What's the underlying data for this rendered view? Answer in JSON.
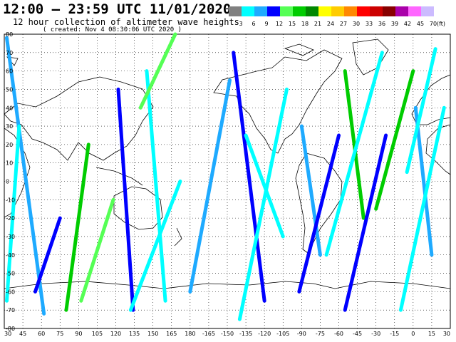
{
  "header": {
    "title": "12:00 – 23:59 UTC 11/01/2020",
    "subtitle": "12 hour collection of altimeter wave heights",
    "created": "( created: Nov  4 08:30:06 UTC 2020 )"
  },
  "legend": {
    "unit": "(ft)",
    "bins": [
      {
        "label": "3",
        "color": "#808080"
      },
      {
        "label": "6",
        "color": "#00ffff"
      },
      {
        "label": "9",
        "color": "#1eaaff"
      },
      {
        "label": "12",
        "color": "#0000ff"
      },
      {
        "label": "15",
        "color": "#55ff55"
      },
      {
        "label": "18",
        "color": "#00cc00"
      },
      {
        "label": "21",
        "color": "#008800"
      },
      {
        "label": "24",
        "color": "#ffff00"
      },
      {
        "label": "27",
        "color": "#ffcc00"
      },
      {
        "label": "30",
        "color": "#ff8800"
      },
      {
        "label": "33",
        "color": "#ff0000"
      },
      {
        "label": "36",
        "color": "#cc0000"
      },
      {
        "label": "39",
        "color": "#880000"
      },
      {
        "label": "42",
        "color": "#aa00aa"
      },
      {
        "label": "45",
        "color": "#ff66ff"
      },
      {
        "label": "70",
        "color": "#ccbbff"
      }
    ]
  },
  "map": {
    "lon_labels": [
      "30",
      "45",
      "60",
      "75",
      "90",
      "105",
      "120",
      "135",
      "150",
      "165",
      "180",
      "-165",
      "-150",
      "-135",
      "-120",
      "-105",
      "-90",
      "-75",
      "-60",
      "-45",
      "-30",
      "-15",
      "0",
      "15",
      "30"
    ],
    "lat_labels": [
      "80",
      "70",
      "60",
      "50",
      "40",
      "30",
      "20",
      "10",
      "0",
      "-10",
      "-20",
      "-30",
      "-40",
      "-50",
      "-60",
      "-70",
      "-80"
    ],
    "lon_range": [
      30,
      390
    ],
    "lat_range": [
      -80,
      80
    ],
    "tracks": [
      {
        "from": [
          32,
          78
        ],
        "to": [
          62,
          -72
        ],
        "color": "#1eaaff"
      },
      {
        "from": [
          42,
          30
        ],
        "to": [
          32,
          -65
        ],
        "color": "#00ffff"
      },
      {
        "from": [
          75,
          -20
        ],
        "to": [
          55,
          -60
        ],
        "color": "#0000ff"
      },
      {
        "from": [
          98,
          20
        ],
        "to": [
          80,
          -70
        ],
        "color": "#00cc00"
      },
      {
        "from": [
          118,
          -10
        ],
        "to": [
          92,
          -65
        ],
        "color": "#55ff55"
      },
      {
        "from": [
          122,
          50
        ],
        "to": [
          134,
          -70
        ],
        "color": "#0000ff"
      },
      {
        "from": [
          145,
          60
        ],
        "to": [
          160,
          -65
        ],
        "color": "#00ffff"
      },
      {
        "from": [
          172,
          0
        ],
        "to": [
          132,
          -70
        ],
        "color": "#00ffff"
      },
      {
        "from": [
          168,
          80
        ],
        "to": [
          140,
          40
        ],
        "color": "#55ff55"
      },
      {
        "from": [
          212,
          55
        ],
        "to": [
          180,
          -60
        ],
        "color": "#1eaaff"
      },
      {
        "from": [
          215,
          70
        ],
        "to": [
          240,
          -65
        ],
        "color": "#0000ff"
      },
      {
        "from": [
          225,
          25
        ],
        "to": [
          255,
          -30
        ],
        "color": "#00ffff"
      },
      {
        "from": [
          258,
          50
        ],
        "to": [
          220,
          -75
        ],
        "color": "#00ffff"
      },
      {
        "from": [
          270,
          30
        ],
        "to": [
          285,
          -40
        ],
        "color": "#1eaaff"
      },
      {
        "from": [
          300,
          25
        ],
        "to": [
          268,
          -60
        ],
        "color": "#0000ff"
      },
      {
        "from": [
          305,
          60
        ],
        "to": [
          320,
          -20
        ],
        "color": "#00cc00"
      },
      {
        "from": [
          335,
          70
        ],
        "to": [
          290,
          -40
        ],
        "color": "#00ffff"
      },
      {
        "from": [
          338,
          25
        ],
        "to": [
          305,
          -70
        ],
        "color": "#0000ff"
      },
      {
        "from": [
          360,
          60
        ],
        "to": [
          330,
          -15
        ],
        "color": "#00cc00"
      },
      {
        "from": [
          362,
          40
        ],
        "to": [
          375,
          -40
        ],
        "color": "#1eaaff"
      },
      {
        "from": [
          378,
          72
        ],
        "to": [
          355,
          5
        ],
        "color": "#00ffff"
      },
      {
        "from": [
          385,
          40
        ],
        "to": [
          350,
          -70
        ],
        "color": "#00ffff"
      }
    ]
  }
}
